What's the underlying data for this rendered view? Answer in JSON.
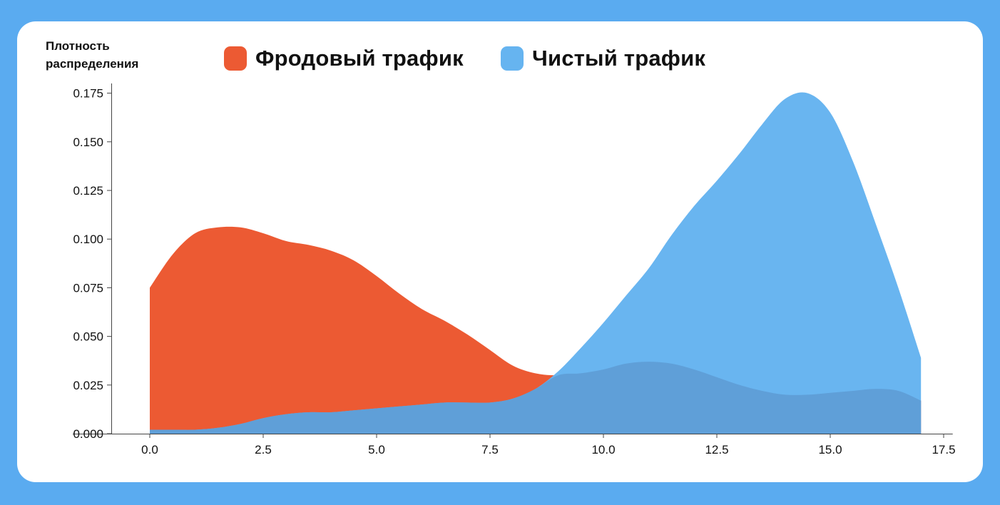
{
  "colors": {
    "background": "#5aabf0",
    "fraud": "#ec5a33",
    "clean": "#66b4f0"
  },
  "chart_data": {
    "type": "area",
    "title": "",
    "xlabel": "",
    "ylabel": "Плотность\nраспределения",
    "xlim": [
      -1.7,
      17.7
    ],
    "ylim": [
      0,
      0.18
    ],
    "x_ticks": [
      "0.0",
      "2.5",
      "5.0",
      "7.5",
      "10.0",
      "12.5",
      "15.0",
      "17.5"
    ],
    "y_ticks": [
      "0.000",
      "0.025",
      "0.050",
      "0.075",
      "0.100",
      "0.125",
      "0.150",
      "0.175"
    ],
    "grid": false,
    "legend_position": "top",
    "series": [
      {
        "name": "Фродовый трафик",
        "color": "#ec5a33",
        "x": [
          0,
          0.5,
          1,
          1.5,
          2,
          2.5,
          3,
          3.5,
          4,
          4.5,
          5,
          5.5,
          6,
          6.5,
          7,
          7.5,
          8,
          8.5,
          9,
          9.5,
          10,
          10.5,
          11,
          11.5,
          12,
          12.5,
          13,
          13.5,
          14,
          14.5,
          15,
          15.5,
          16,
          16.5,
          17
        ],
        "y": [
          0.075,
          0.092,
          0.103,
          0.106,
          0.106,
          0.103,
          0.099,
          0.097,
          0.094,
          0.089,
          0.081,
          0.072,
          0.064,
          0.058,
          0.051,
          0.043,
          0.035,
          0.031,
          0.03,
          0.031,
          0.033,
          0.036,
          0.037,
          0.036,
          0.033,
          0.029,
          0.025,
          0.022,
          0.02,
          0.02,
          0.021,
          0.022,
          0.023,
          0.022,
          0.017
        ]
      },
      {
        "name": "Чистый трафик",
        "color": "#66b4f0",
        "x": [
          0,
          0.5,
          1,
          1.5,
          2,
          2.5,
          3,
          3.5,
          4,
          4.5,
          5,
          5.5,
          6,
          6.5,
          7,
          7.5,
          8,
          8.5,
          9,
          9.5,
          10,
          10.5,
          11,
          11.5,
          12,
          12.5,
          13,
          13.5,
          14,
          14.5,
          15,
          15.5,
          16,
          16.5,
          17
        ],
        "y": [
          0.002,
          0.002,
          0.002,
          0.003,
          0.005,
          0.008,
          0.01,
          0.011,
          0.011,
          0.012,
          0.013,
          0.014,
          0.015,
          0.016,
          0.016,
          0.016,
          0.018,
          0.023,
          0.032,
          0.044,
          0.057,
          0.071,
          0.085,
          0.102,
          0.117,
          0.13,
          0.144,
          0.159,
          0.172,
          0.175,
          0.165,
          0.14,
          0.108,
          0.075,
          0.039
        ]
      }
    ]
  }
}
